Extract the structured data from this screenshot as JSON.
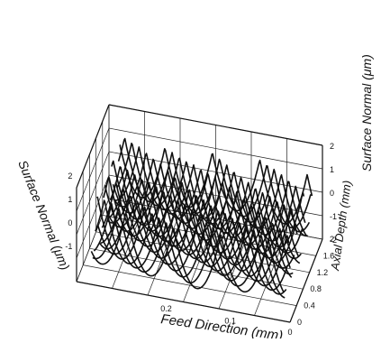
{
  "chart_data": {
    "type": "surface-3d-waterfall",
    "x_axis": {
      "label": "Feed Direction (mm)",
      "ticks": [
        "0.2",
        "0.1",
        "0"
      ]
    },
    "y_axis": {
      "label": "Axial Depth (mm)",
      "ticks": [
        "0",
        "0.4",
        "0.8",
        "1.2",
        "1.6",
        "2"
      ]
    },
    "z_axis_right": {
      "label": "Surface Normal (μm)",
      "ticks": [
        "2",
        "1",
        "0",
        "-1",
        "-2"
      ]
    },
    "z_axis_left": {
      "label": "Surface Normal (μm)",
      "ticks": [
        "2",
        "1",
        "0",
        "-1"
      ]
    },
    "grid": true,
    "series_description": "22 scalloped profile traces along feed direction, stacked in axial depth",
    "profiles": {
      "count": 22,
      "scallops_per_trace": 4.5,
      "peak_um": 1.0,
      "valley_um": -1.4
    }
  }
}
